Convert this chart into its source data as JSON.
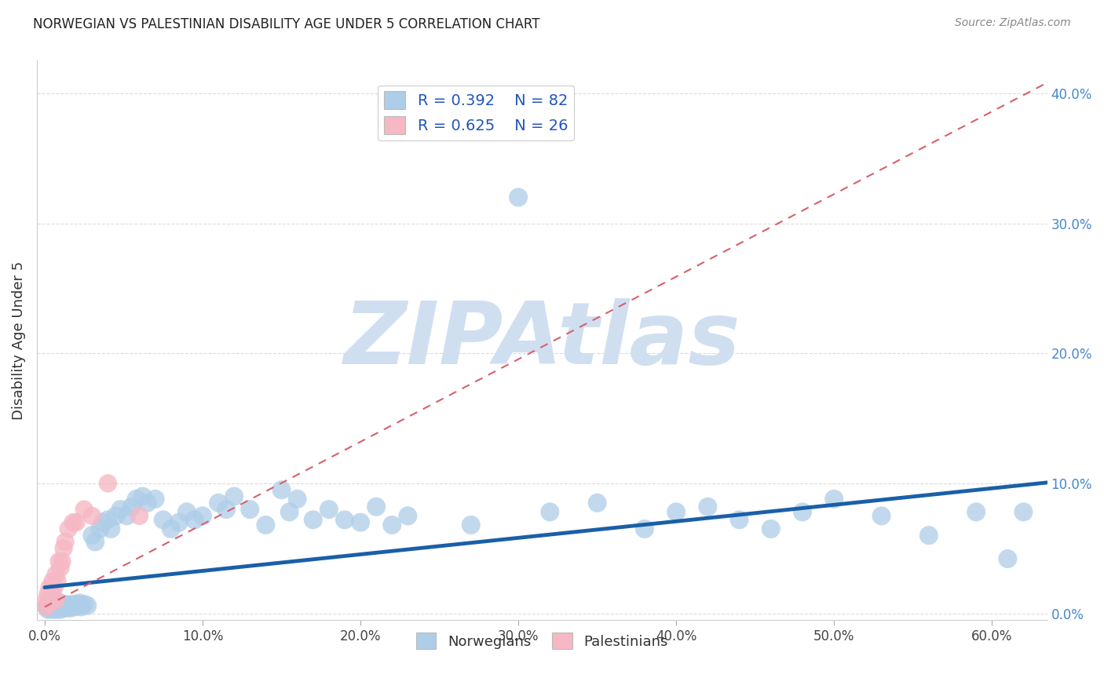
{
  "title": "NORWEGIAN VS PALESTINIAN DISABILITY AGE UNDER 5 CORRELATION CHART",
  "source": "Source: ZipAtlas.com",
  "xlabel_ticks": [
    "0.0%",
    "10.0%",
    "20.0%",
    "30.0%",
    "40.0%",
    "50.0%",
    "60.0%"
  ],
  "xlabel_vals": [
    0.0,
    0.1,
    0.2,
    0.3,
    0.4,
    0.5,
    0.6
  ],
  "ylabel": "Disability Age Under 5",
  "xlim": [
    -0.005,
    0.635
  ],
  "ylim": [
    -0.005,
    0.425
  ],
  "ytick_vals": [
    0.0,
    0.1,
    0.2,
    0.3,
    0.4
  ],
  "ytick_labels": [
    "0.0%",
    "10.0%",
    "20.0%",
    "30.0%",
    "40.0%"
  ],
  "norwegian_R": 0.392,
  "norwegian_N": 82,
  "palestinian_R": 0.625,
  "palestinian_N": 26,
  "norwegian_color": "#aecde8",
  "norwegian_line_color": "#1a5fa8",
  "palestinian_color": "#f5b8c4",
  "palestinian_line_color": "#d8606e",
  "watermark": "ZIPAtlas",
  "watermark_color": "#d0dff0",
  "background_color": "#ffffff",
  "grid_color": "#cccccc",
  "legend_color_norw": "#aecde8",
  "legend_color_pal": "#f5b8c4",
  "norwegian_x": [
    0.001,
    0.002,
    0.003,
    0.003,
    0.004,
    0.005,
    0.005,
    0.006,
    0.007,
    0.007,
    0.008,
    0.009,
    0.009,
    0.01,
    0.01,
    0.011,
    0.012,
    0.012,
    0.013,
    0.014,
    0.015,
    0.016,
    0.017,
    0.018,
    0.019,
    0.02,
    0.021,
    0.022,
    0.023,
    0.025,
    0.027,
    0.03,
    0.032,
    0.035,
    0.037,
    0.04,
    0.042,
    0.045,
    0.048,
    0.052,
    0.055,
    0.058,
    0.062,
    0.065,
    0.07,
    0.075,
    0.08,
    0.085,
    0.09,
    0.095,
    0.1,
    0.11,
    0.115,
    0.12,
    0.13,
    0.14,
    0.15,
    0.155,
    0.16,
    0.17,
    0.18,
    0.19,
    0.2,
    0.21,
    0.22,
    0.23,
    0.27,
    0.3,
    0.32,
    0.35,
    0.38,
    0.4,
    0.42,
    0.44,
    0.46,
    0.48,
    0.5,
    0.53,
    0.56,
    0.59,
    0.61,
    0.62
  ],
  "norwegian_y": [
    0.005,
    0.003,
    0.008,
    0.004,
    0.006,
    0.003,
    0.007,
    0.004,
    0.006,
    0.003,
    0.005,
    0.004,
    0.007,
    0.003,
    0.008,
    0.005,
    0.006,
    0.004,
    0.007,
    0.005,
    0.006,
    0.004,
    0.007,
    0.006,
    0.005,
    0.007,
    0.006,
    0.008,
    0.005,
    0.007,
    0.006,
    0.06,
    0.055,
    0.065,
    0.07,
    0.072,
    0.065,
    0.075,
    0.08,
    0.075,
    0.082,
    0.088,
    0.09,
    0.085,
    0.088,
    0.072,
    0.065,
    0.07,
    0.078,
    0.072,
    0.075,
    0.085,
    0.08,
    0.09,
    0.08,
    0.068,
    0.095,
    0.078,
    0.088,
    0.072,
    0.08,
    0.072,
    0.07,
    0.082,
    0.068,
    0.075,
    0.068,
    0.32,
    0.078,
    0.085,
    0.065,
    0.078,
    0.082,
    0.072,
    0.065,
    0.078,
    0.088,
    0.075,
    0.06,
    0.078,
    0.042,
    0.078
  ],
  "palestinian_x": [
    0.001,
    0.001,
    0.002,
    0.002,
    0.003,
    0.003,
    0.004,
    0.004,
    0.005,
    0.005,
    0.006,
    0.007,
    0.007,
    0.008,
    0.009,
    0.01,
    0.011,
    0.012,
    0.013,
    0.015,
    0.018,
    0.02,
    0.025,
    0.03,
    0.04,
    0.06
  ],
  "palestinian_y": [
    0.005,
    0.01,
    0.008,
    0.015,
    0.01,
    0.02,
    0.012,
    0.018,
    0.015,
    0.025,
    0.02,
    0.01,
    0.03,
    0.025,
    0.04,
    0.035,
    0.04,
    0.05,
    0.055,
    0.065,
    0.07,
    0.07,
    0.08,
    0.075,
    0.1,
    0.075
  ]
}
